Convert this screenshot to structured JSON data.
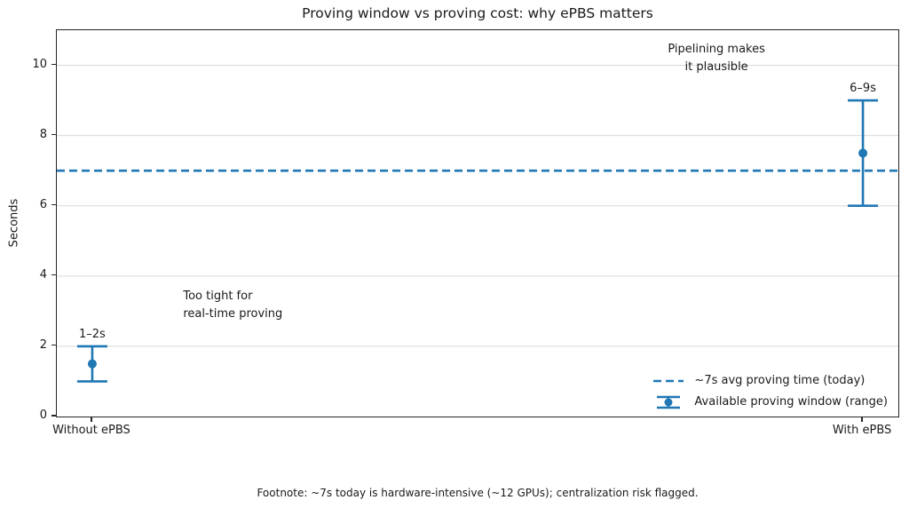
{
  "footnote": "Footnote: ~7s today is hardware-intensive (~12 GPUs); centralization risk flagged.",
  "colors": {
    "accent": "#1f77b4",
    "grid": "#d9d9d9",
    "spine": "#262626",
    "text": "#1a1a1a"
  },
  "chart_data": {
    "type": "scatter",
    "title": "Proving window vs proving cost: why ePBS matters",
    "xlabel": "",
    "ylabel": "Seconds",
    "categories": [
      "Without ePBS",
      "With ePBS"
    ],
    "series": [
      {
        "name": "Available proving window (range)",
        "values": [
          1.5,
          7.5
        ],
        "ranges": [
          [
            1,
            2
          ],
          [
            6,
            9
          ]
        ],
        "point_labels": [
          "1–2s",
          "6–9s"
        ]
      }
    ],
    "reference_line": {
      "value": 7,
      "style": "dashed",
      "label": "~7s avg proving time (today)"
    },
    "annotations": [
      {
        "lines": [
          "Too tight for",
          "real-time proving"
        ],
        "x": 0.118,
        "y": 3.17,
        "ha": "left"
      },
      {
        "lines": [
          "Pipelining makes",
          "it plausible"
        ],
        "x": 0.81,
        "y": 10.2,
        "ha": "center"
      }
    ],
    "xlim": [
      -0.046,
      1.046
    ],
    "ylim": [
      0,
      11
    ],
    "yticks": [
      0,
      2,
      4,
      6,
      8,
      10
    ],
    "grid": "horizontal",
    "legend_position": "lower right"
  }
}
